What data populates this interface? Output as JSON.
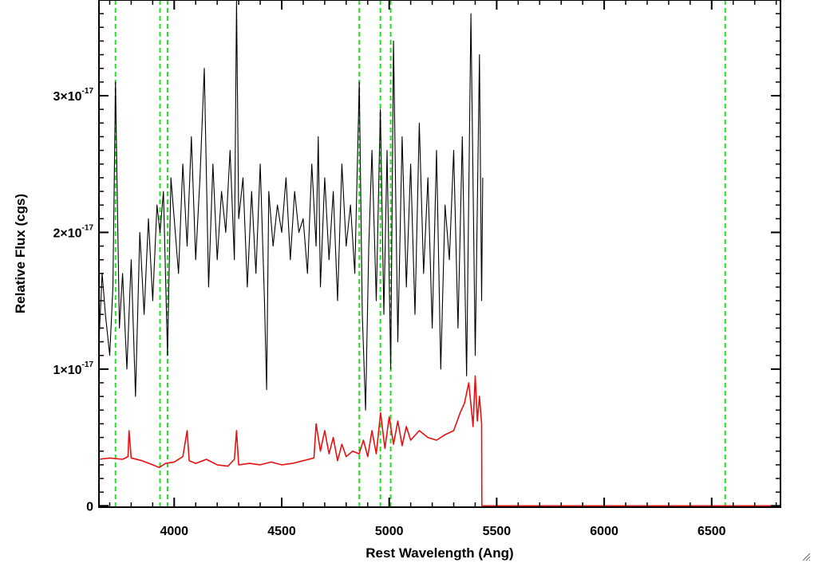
{
  "chart_data": {
    "type": "line",
    "xlabel": "Rest Wavelength (Ang)",
    "ylabel": "Relative Flux (cgs)",
    "xlim": [
      3650,
      6820
    ],
    "ylim": [
      -1e-19,
      3.7e-17
    ],
    "x_ticks": [
      4000,
      4500,
      5000,
      5500,
      6000,
      6500
    ],
    "x_tick_labels": [
      "4000",
      "4500",
      "5000",
      "5500",
      "6000",
      "6500"
    ],
    "y_ticks": [
      0,
      1e-17,
      2e-17,
      3e-17
    ],
    "y_tick_labels": [
      {
        "base": "0",
        "exp": ""
      },
      {
        "base": "1×10",
        "exp": "-17"
      },
      {
        "base": "2×10",
        "exp": "-17"
      },
      {
        "base": "3×10",
        "exp": "-17"
      }
    ],
    "reference_lines_x": [
      3727,
      3934,
      3969,
      4861,
      4959,
      5007,
      6563
    ],
    "colors": {
      "flux": "#000000",
      "error": "#e81010",
      "lines": "#22e022",
      "axes": "#000000"
    },
    "series": [
      {
        "role": "flux",
        "x": [
          3650,
          3665,
          3680,
          3700,
          3715,
          3727,
          3745,
          3760,
          3780,
          3800,
          3820,
          3840,
          3860,
          3880,
          3900,
          3920,
          3934,
          3950,
          3969,
          3985,
          4000,
          4020,
          4040,
          4060,
          4080,
          4100,
          4120,
          4140,
          4160,
          4180,
          4200,
          4220,
          4240,
          4260,
          4280,
          4290,
          4300,
          4320,
          4340,
          4360,
          4380,
          4400,
          4420,
          4430,
          4440,
          4460,
          4480,
          4500,
          4520,
          4540,
          4560,
          4580,
          4600,
          4620,
          4640,
          4660,
          4670,
          4680,
          4700,
          4720,
          4740,
          4760,
          4780,
          4800,
          4820,
          4840,
          4861,
          4875,
          4890,
          4905,
          4920,
          4940,
          4959,
          4975,
          4990,
          5007,
          5020,
          5040,
          5060,
          5080,
          5100,
          5120,
          5140,
          5160,
          5180,
          5200,
          5220,
          5240,
          5260,
          5280,
          5300,
          5320,
          5340,
          5360,
          5380,
          5400,
          5420,
          5430,
          5435
        ],
        "y": [
          1.2e-17,
          1.7e-17,
          1.4e-17,
          1.1e-17,
          1.6e-17,
          3.1e-17,
          1.3e-17,
          1.7e-17,
          1e-17,
          1.8e-17,
          8e-18,
          2e-17,
          1.4e-17,
          2.1e-17,
          1.5e-17,
          2.2e-17,
          2e-17,
          2.3e-17,
          1.1e-17,
          2.4e-17,
          2.1e-17,
          1.7e-17,
          2.5e-17,
          1.9e-17,
          2.7e-17,
          1.8e-17,
          2.4e-17,
          3.2e-17,
          1.6e-17,
          2.5e-17,
          1.8e-17,
          2.3e-17,
          2e-17,
          2.6e-17,
          1.8e-17,
          3.7e-17,
          2.1e-17,
          2.4e-17,
          1.6e-17,
          2.3e-17,
          1.7e-17,
          2.5e-17,
          1.5e-17,
          8.5e-18,
          2.3e-17,
          1.9e-17,
          2.2e-17,
          2e-17,
          2.4e-17,
          1.8e-17,
          2.3e-17,
          2e-17,
          2.1e-17,
          1.7e-17,
          2.5e-17,
          1.9e-17,
          2.7e-17,
          1.6e-17,
          2.4e-17,
          1.8e-17,
          2.3e-17,
          1.5e-17,
          2.5e-17,
          1.9e-17,
          2.2e-17,
          1.7e-17,
          3.1e-17,
          1.4e-17,
          7e-18,
          1.9e-17,
          2.6e-17,
          1.5e-17,
          2.9e-17,
          1.4e-17,
          2.6e-17,
          1e-17,
          3.4e-17,
          1.2e-17,
          2.7e-17,
          1.6e-17,
          2.5e-17,
          1.4e-17,
          2.8e-17,
          1.7e-17,
          2.4e-17,
          1.3e-17,
          2.6e-17,
          1e-17,
          2.2e-17,
          1.8e-17,
          2.6e-17,
          1.3e-17,
          2.7e-17,
          9.5e-18,
          3.6e-17,
          1.1e-17,
          3.3e-17,
          1.5e-17,
          2.4e-17
        ]
      },
      {
        "role": "error",
        "x": [
          3650,
          3700,
          3760,
          3785,
          3790,
          3800,
          3850,
          3900,
          3930,
          3960,
          4000,
          4040,
          4060,
          4070,
          4100,
          4150,
          4200,
          4250,
          4280,
          4290,
          4300,
          4350,
          4400,
          4450,
          4500,
          4550,
          4600,
          4650,
          4660,
          4680,
          4700,
          4720,
          4740,
          4760,
          4780,
          4800,
          4830,
          4860,
          4880,
          4900,
          4920,
          4940,
          4960,
          4980,
          5000,
          5020,
          5040,
          5060,
          5080,
          5100,
          5140,
          5180,
          5220,
          5260,
          5300,
          5330,
          5350,
          5370,
          5390,
          5400,
          5410,
          5420,
          5430,
          5431,
          5500,
          6000,
          6500,
          6820
        ],
        "y": [
          3.4e-18,
          3.5e-18,
          3.4e-18,
          3.6e-18,
          5.5e-18,
          3.5e-18,
          3.3e-18,
          3e-18,
          2.8e-18,
          3.1e-18,
          3.2e-18,
          3.6e-18,
          5.5e-18,
          3.3e-18,
          3.1e-18,
          3.4e-18,
          3e-18,
          2.9e-18,
          3.4e-18,
          5.5e-18,
          3e-18,
          3.1e-18,
          3e-18,
          3.2e-18,
          3e-18,
          3.1e-18,
          3.3e-18,
          3.5e-18,
          6e-18,
          4e-18,
          5.5e-18,
          3.8e-18,
          5e-18,
          3.3e-18,
          4.5e-18,
          3.6e-18,
          4e-18,
          3.8e-18,
          4.8e-18,
          3.6e-18,
          5.5e-18,
          3.8e-18,
          6.8e-18,
          4.2e-18,
          6.5e-18,
          4.5e-18,
          6.2e-18,
          4.4e-18,
          5.8e-18,
          4.8e-18,
          5.5e-18,
          5e-18,
          4.8e-18,
          5.2e-18,
          5.5e-18,
          6.8e-18,
          7.5e-18,
          9e-18,
          5.8e-18,
          9.5e-18,
          6.2e-18,
          8e-18,
          6e-18,
          0.0,
          0.0,
          0.0,
          0.0,
          0.0
        ]
      }
    ]
  }
}
